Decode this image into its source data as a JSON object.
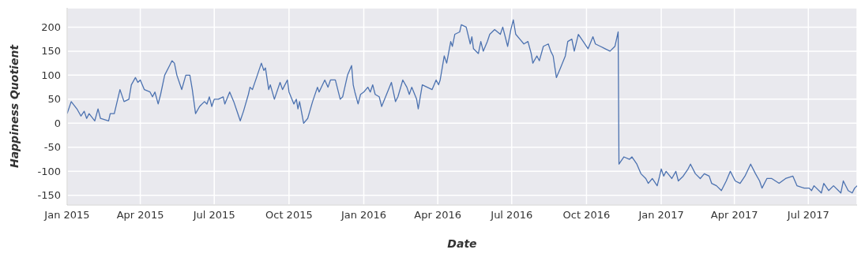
{
  "chart_data": {
    "type": "line",
    "xlabel": "Date",
    "ylabel": "Happiness Quotient",
    "xlim": [
      "2015-01-01",
      "2017-08-30"
    ],
    "ylim": [
      -170,
      240
    ],
    "xticks": [
      {
        "value": "2015-01-01",
        "label": "Jan 2015"
      },
      {
        "value": "2015-04-01",
        "label": "Apr 2015"
      },
      {
        "value": "2015-07-01",
        "label": "Jul 2015"
      },
      {
        "value": "2015-10-01",
        "label": "Oct 2015"
      },
      {
        "value": "2016-01-01",
        "label": "Jan 2016"
      },
      {
        "value": "2016-04-01",
        "label": "Apr 2016"
      },
      {
        "value": "2016-07-01",
        "label": "Jul 2016"
      },
      {
        "value": "2016-10-01",
        "label": "Oct 2016"
      },
      {
        "value": "2017-01-01",
        "label": "Jan 2017"
      },
      {
        "value": "2017-04-01",
        "label": "Apr 2017"
      },
      {
        "value": "2017-07-01",
        "label": "Jul 2017"
      }
    ],
    "yticks": [
      -150,
      -100,
      -50,
      0,
      50,
      100,
      150,
      200
    ],
    "grid": true,
    "marker": "none",
    "line_style": "solid",
    "x": [
      "2015-01-01",
      "2015-01-06",
      "2015-01-13",
      "2015-01-18",
      "2015-01-22",
      "2015-01-25",
      "2015-01-28",
      "2015-02-04",
      "2015-02-08",
      "2015-02-11",
      "2015-02-21",
      "2015-02-23",
      "2015-02-28",
      "2015-03-07",
      "2015-03-12",
      "2015-03-18",
      "2015-03-21",
      "2015-03-26",
      "2015-03-29",
      "2015-04-01",
      "2015-04-06",
      "2015-04-13",
      "2015-04-16",
      "2015-04-19",
      "2015-04-23",
      "2015-04-26",
      "2015-05-01",
      "2015-05-07",
      "2015-05-10",
      "2015-05-13",
      "2015-05-16",
      "2015-05-20",
      "2015-05-22",
      "2015-05-27",
      "2015-06-01",
      "2015-06-04",
      "2015-06-08",
      "2015-06-13",
      "2015-06-19",
      "2015-06-22",
      "2015-06-25",
      "2015-06-28",
      "2015-07-01",
      "2015-07-06",
      "2015-07-12",
      "2015-07-14",
      "2015-07-20",
      "2015-07-25",
      "2015-07-28",
      "2015-08-02",
      "2015-08-06",
      "2015-08-12",
      "2015-08-14",
      "2015-08-17",
      "2015-08-23",
      "2015-08-28",
      "2015-08-31",
      "2015-09-02",
      "2015-09-06",
      "2015-09-08",
      "2015-09-13",
      "2015-09-20",
      "2015-09-23",
      "2015-09-29",
      "2015-10-01",
      "2015-10-07",
      "2015-10-10",
      "2015-10-12",
      "2015-10-14",
      "2015-10-19",
      "2015-10-24",
      "2015-10-30",
      "2015-11-05",
      "2015-11-07",
      "2015-11-14",
      "2015-11-18",
      "2015-11-21",
      "2015-11-27",
      "2015-12-03",
      "2015-12-06",
      "2015-12-12",
      "2015-12-17",
      "2015-12-19",
      "2015-12-21",
      "2015-12-25",
      "2015-12-28",
      "2016-01-01",
      "2016-01-06",
      "2016-01-09",
      "2016-01-12",
      "2016-01-15",
      "2016-01-20",
      "2016-01-23",
      "2016-01-29",
      "2016-02-04",
      "2016-02-09",
      "2016-02-12",
      "2016-02-18",
      "2016-02-23",
      "2016-02-26",
      "2016-02-29",
      "2016-03-06",
      "2016-03-08",
      "2016-03-13",
      "2016-03-19",
      "2016-03-25",
      "2016-03-30",
      "2016-04-02",
      "2016-04-04",
      "2016-04-09",
      "2016-04-12",
      "2016-04-17",
      "2016-04-19",
      "2016-04-22",
      "2016-04-28",
      "2016-04-30",
      "2016-05-06",
      "2016-05-11",
      "2016-05-13",
      "2016-05-15",
      "2016-05-21",
      "2016-05-24",
      "2016-05-27",
      "2016-06-01",
      "2016-06-04",
      "2016-06-10",
      "2016-06-17",
      "2016-06-20",
      "2016-06-26",
      "2016-06-30",
      "2016-07-03",
      "2016-07-06",
      "2016-07-11",
      "2016-07-16",
      "2016-07-21",
      "2016-07-25",
      "2016-07-27",
      "2016-08-01",
      "2016-08-04",
      "2016-08-09",
      "2016-08-15",
      "2016-08-18",
      "2016-08-21",
      "2016-08-25",
      "2016-08-30",
      "2016-09-05",
      "2016-09-08",
      "2016-09-13",
      "2016-09-16",
      "2016-09-21",
      "2016-09-27",
      "2016-10-03",
      "2016-10-09",
      "2016-10-12",
      "2016-10-18",
      "2016-10-24",
      "2016-10-30",
      "2016-11-05",
      "2016-11-09",
      "2016-11-10",
      "2016-11-16",
      "2016-11-23",
      "2016-11-26",
      "2016-12-02",
      "2016-12-07",
      "2016-12-13",
      "2016-12-16",
      "2016-12-21",
      "2016-12-27",
      "2016-12-30",
      "2017-01-01",
      "2017-01-04",
      "2017-01-07",
      "2017-01-14",
      "2017-01-19",
      "2017-01-22",
      "2017-01-28",
      "2017-02-03",
      "2017-02-06",
      "2017-02-12",
      "2017-02-18",
      "2017-02-23",
      "2017-03-01",
      "2017-03-04",
      "2017-03-10",
      "2017-03-16",
      "2017-03-22",
      "2017-03-27",
      "2017-04-02",
      "2017-04-08",
      "2017-04-14",
      "2017-04-21",
      "2017-04-27",
      "2017-05-02",
      "2017-05-05",
      "2017-05-11",
      "2017-05-17",
      "2017-05-26",
      "2017-06-03",
      "2017-06-12",
      "2017-06-17",
      "2017-06-26",
      "2017-07-02",
      "2017-07-05",
      "2017-07-08",
      "2017-07-17",
      "2017-07-20",
      "2017-07-26",
      "2017-08-01",
      "2017-08-10",
      "2017-08-13",
      "2017-08-19",
      "2017-08-24",
      "2017-08-27",
      "2017-08-30"
    ],
    "series": [
      {
        "color": "#4c72b0",
        "values": [
          20,
          45,
          30,
          15,
          25,
          10,
          20,
          5,
          30,
          10,
          5,
          20,
          20,
          70,
          45,
          50,
          80,
          95,
          85,
          90,
          70,
          65,
          55,
          65,
          40,
          60,
          100,
          120,
          130,
          125,
          100,
          80,
          70,
          100,
          100,
          70,
          20,
          35,
          45,
          40,
          55,
          35,
          50,
          50,
          55,
          40,
          65,
          45,
          30,
          5,
          25,
          60,
          75,
          70,
          100,
          125,
          110,
          115,
          70,
          80,
          50,
          85,
          70,
          90,
          65,
          40,
          50,
          30,
          45,
          0,
          10,
          45,
          75,
          65,
          90,
          75,
          90,
          90,
          50,
          55,
          100,
          120,
          80,
          65,
          40,
          60,
          65,
          75,
          65,
          80,
          60,
          55,
          35,
          60,
          85,
          45,
          55,
          90,
          75,
          60,
          75,
          50,
          30,
          80,
          75,
          70,
          90,
          80,
          90,
          140,
          125,
          170,
          160,
          185,
          190,
          205,
          200,
          165,
          180,
          155,
          145,
          170,
          150,
          170,
          185,
          195,
          185,
          200,
          160,
          195,
          215,
          185,
          175,
          165,
          170,
          145,
          125,
          140,
          130,
          160,
          165,
          150,
          140,
          95,
          115,
          140,
          170,
          175,
          150,
          185,
          170,
          155,
          180,
          165,
          160,
          155,
          150,
          160,
          190,
          -85,
          -70,
          -75,
          -70,
          -85,
          -105,
          -115,
          -125,
          -115,
          -130,
          -110,
          -95,
          -110,
          -100,
          -115,
          -100,
          -120,
          -110,
          -95,
          -85,
          -105,
          -115,
          -105,
          -110,
          -125,
          -130,
          -140,
          -120,
          -100,
          -120,
          -125,
          -110,
          -85,
          -105,
          -120,
          -135,
          -115,
          -115,
          -125,
          -115,
          -110,
          -130,
          -135,
          -135,
          -140,
          -130,
          -145,
          -125,
          -140,
          -130,
          -145,
          -120,
          -140,
          -145,
          -135,
          -130
        ]
      }
    ]
  }
}
